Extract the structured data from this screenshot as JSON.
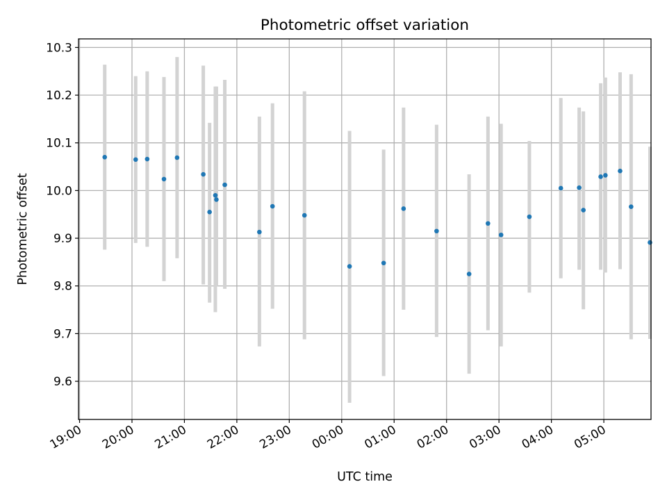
{
  "chart_data": {
    "type": "scatter",
    "title": "Photometric offset variation",
    "xlabel": "UTC time",
    "ylabel": "Photometric offset",
    "x_ticks": [
      "19:00",
      "20:00",
      "21:00",
      "22:00",
      "23:00",
      "00:00",
      "01:00",
      "02:00",
      "03:00",
      "04:00",
      "05:00"
    ],
    "x_tick_hours": [
      0,
      1,
      2,
      3,
      4,
      5,
      6,
      7,
      8,
      9,
      10
    ],
    "xlim_hours": [
      -0.02,
      10.9
    ],
    "y_ticks": [
      "9.6",
      "9.7",
      "9.8",
      "9.9",
      "10.0",
      "10.1",
      "10.2",
      "10.3"
    ],
    "ylim": [
      9.52,
      10.318
    ],
    "grid": true,
    "colors": {
      "points": "#1f77b4",
      "errorbars": "#d3d3d3",
      "grid": "#b0b0b0",
      "axes": "#000000"
    },
    "series": [
      {
        "x_hours": [
          0.48,
          1.07,
          1.29,
          1.61,
          1.86,
          2.36,
          2.48,
          2.59,
          2.61,
          2.77,
          3.43,
          3.68,
          4.29,
          5.15,
          5.8,
          6.18,
          6.81,
          7.43,
          7.79,
          8.04,
          8.58,
          9.18,
          9.53,
          9.61,
          9.94,
          10.03,
          10.31,
          10.52
        ],
        "y": [
          10.07,
          10.065,
          10.066,
          10.024,
          10.069,
          10.034,
          9.955,
          9.99,
          9.981,
          10.012,
          9.913,
          9.967,
          9.948,
          9.841,
          9.848,
          9.962,
          9.915,
          9.825,
          9.931,
          9.907,
          9.945,
          10.005,
          10.006,
          9.959,
          10.029,
          10.032,
          10.041,
          9.966
        ],
        "yerr_low": [
          9.876,
          9.89,
          9.882,
          9.81,
          9.858,
          9.803,
          9.765,
          9.745,
          9.8,
          9.794,
          9.673,
          9.752,
          9.688,
          9.555,
          9.611,
          9.75,
          9.693,
          9.616,
          9.707,
          9.673,
          9.786,
          9.816,
          9.834,
          9.751,
          9.834,
          9.828,
          9.835,
          9.688
        ],
        "yerr_high": [
          10.264,
          10.24,
          10.25,
          10.238,
          10.28,
          10.262,
          10.142,
          10.218,
          10.218,
          10.232,
          10.155,
          10.183,
          10.208,
          10.125,
          10.086,
          10.174,
          10.138,
          10.034,
          10.155,
          10.14,
          10.104,
          10.194,
          10.174,
          10.166,
          10.225,
          10.237,
          10.248,
          10.244
        ]
      },
      {
        "x_hours": [
          10.88
        ],
        "y": [
          9.891
        ],
        "yerr_low": [
          9.689
        ],
        "yerr_high": [
          10.092
        ]
      }
    ]
  }
}
